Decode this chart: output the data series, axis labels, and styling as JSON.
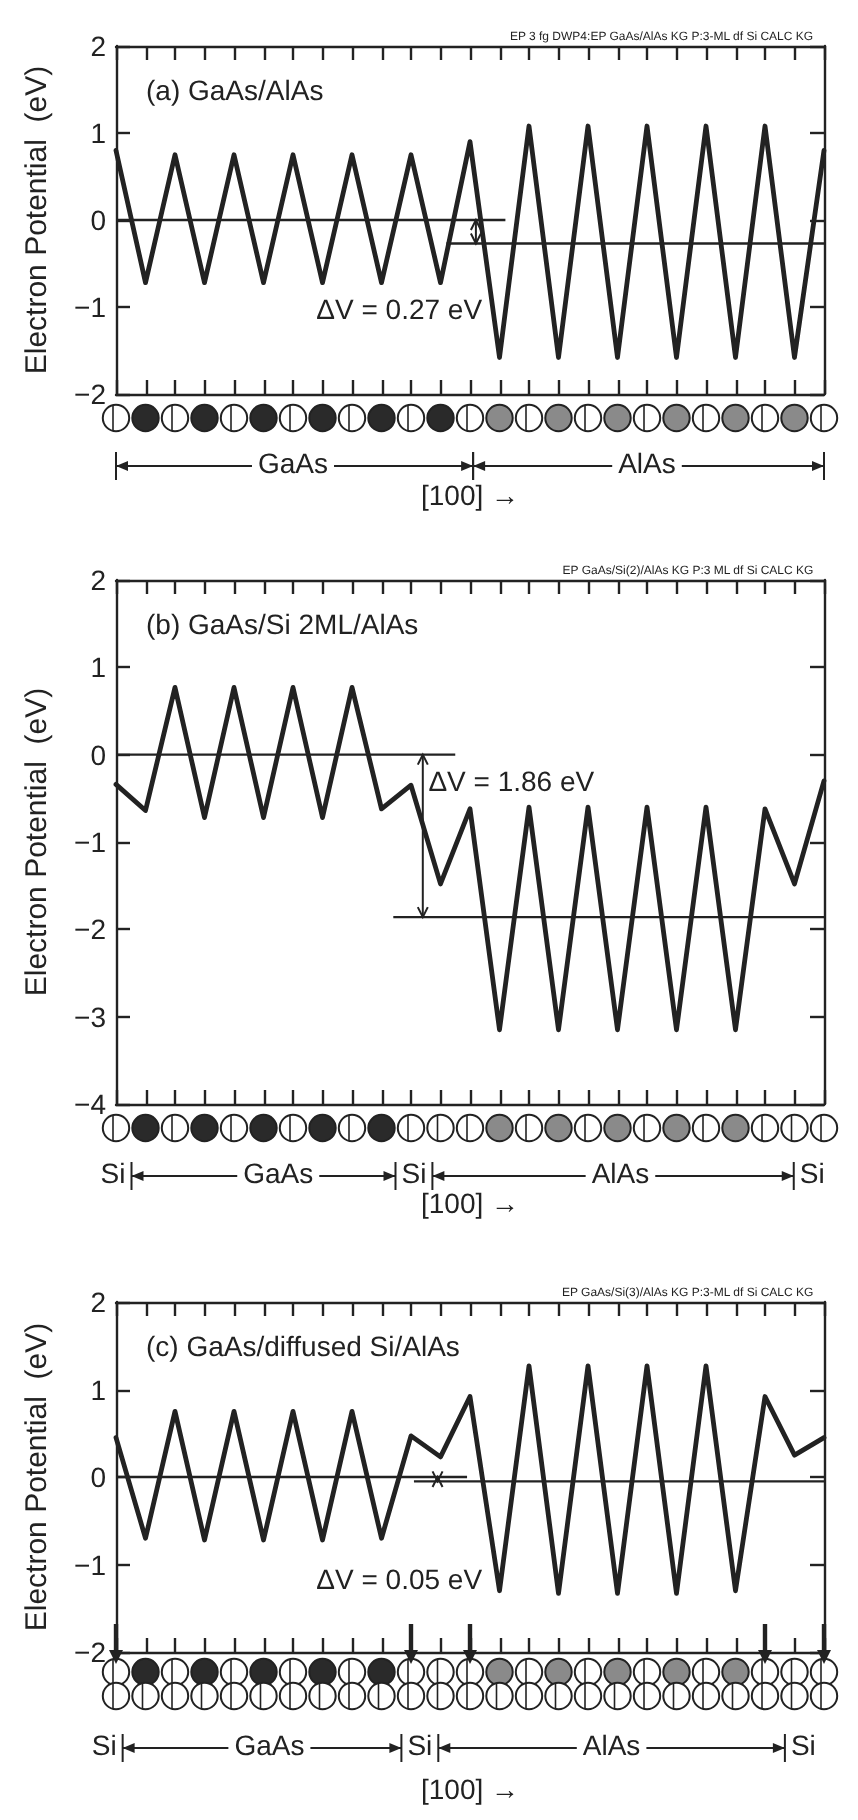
{
  "chart_data": [
    {
      "type": "line",
      "title": "(a) GaAs/AlAs",
      "subtitle": "EP 3 fg DWP4:EP GaAs/AlAs KG P:3-ML df Si CALC KG",
      "ylabel": "Electron Potential  (eV)",
      "categories": [
        null,
        null,
        null,
        null,
        null,
        null,
        null,
        null,
        null,
        null,
        null,
        null,
        null,
        null,
        null,
        null,
        null,
        null,
        null,
        null,
        null,
        null,
        null,
        null,
        null
      ],
      "series": [
        {
          "color": "#222222",
          "values": [
            0.8,
            -0.72,
            0.75,
            -0.72,
            0.75,
            -0.72,
            0.75,
            -0.72,
            0.75,
            -0.72,
            0.75,
            -0.72,
            0.9,
            -1.58,
            1.08,
            -1.58,
            1.08,
            -1.58,
            1.08,
            -1.58,
            1.08,
            -1.58,
            1.08,
            -1.58,
            0.8
          ]
        }
      ],
      "ref_lines": [
        {
          "axis": "y",
          "value": 0,
          "color": "#222222"
        },
        {
          "axis": "y",
          "value": -0.27,
          "color": "#222222"
        }
      ],
      "annotations": [
        "ΔV = 0.27 eV",
        "GaAs",
        "AlAs",
        "[100] →"
      ],
      "ylim": [
        -2,
        2
      ],
      "yticks": [
        -2,
        -1,
        0,
        1,
        2
      ],
      "tick_labels": "y",
      "marker": "none",
      "line_style": "solid"
    },
    {
      "type": "line",
      "title": "(b) GaAs/Si 2ML/AlAs",
      "subtitle": "EP GaAs/Si(2)/AlAs KG P:3 ML df Si CALC KG",
      "ylabel": "Electron Potential  (eV)",
      "categories": [
        null,
        null,
        null,
        null,
        null,
        null,
        null,
        null,
        null,
        null,
        null,
        null,
        null,
        null,
        null,
        null,
        null,
        null,
        null,
        null,
        null,
        null,
        null,
        null,
        null
      ],
      "series": [
        {
          "color": "#222222",
          "values": [
            -0.34,
            -0.64,
            0.77,
            -0.72,
            0.77,
            -0.72,
            0.77,
            -0.72,
            0.77,
            -0.62,
            -0.35,
            -1.48,
            -0.62,
            -3.15,
            -0.6,
            -3.15,
            -0.6,
            -3.15,
            -0.6,
            -3.15,
            -0.6,
            -3.15,
            -0.62,
            -1.48,
            -0.3
          ]
        }
      ],
      "ref_lines": [
        {
          "axis": "y",
          "value": 0,
          "color": "#222222"
        },
        {
          "axis": "y",
          "value": -1.86,
          "color": "#222222"
        }
      ],
      "annotations": [
        "ΔV = 1.86 eV",
        "Si",
        "GaAs",
        "Si",
        "AlAs",
        "Si",
        "[100] →"
      ],
      "ylim": [
        -4,
        2
      ],
      "yticks": [
        -4,
        -3,
        -2,
        -1,
        0,
        1,
        2
      ],
      "tick_labels": "y",
      "marker": "none",
      "line_style": "solid"
    },
    {
      "type": "line",
      "title": "(c) GaAs/diffused Si/AlAs",
      "subtitle": "EP GaAs/Si(3)/AlAs KG P:3-ML df Si CALC KG",
      "ylabel": "Electron Potential  (eV)",
      "categories": [
        null,
        null,
        null,
        null,
        null,
        null,
        null,
        null,
        null,
        null,
        null,
        null,
        null,
        null,
        null,
        null,
        null,
        null,
        null,
        null,
        null,
        null,
        null,
        null,
        null
      ],
      "series": [
        {
          "color": "#222222",
          "values": [
            0.45,
            -0.7,
            0.75,
            -0.72,
            0.75,
            -0.72,
            0.75,
            -0.72,
            0.75,
            -0.7,
            0.47,
            0.23,
            0.92,
            -1.3,
            1.27,
            -1.33,
            1.27,
            -1.33,
            1.27,
            -1.33,
            1.27,
            -1.3,
            0.92,
            0.25,
            0.45
          ]
        }
      ],
      "ref_lines": [
        {
          "axis": "y",
          "value": 0,
          "color": "#222222"
        },
        {
          "axis": "y",
          "value": -0.05,
          "color": "#222222"
        }
      ],
      "annotations": [
        "ΔV = 0.05 eV",
        "Si",
        "GaAs",
        "Si",
        "AlAs",
        "Si",
        "[100] →"
      ],
      "ylim": [
        -2,
        2
      ],
      "yticks": [
        -2,
        -1,
        0,
        1,
        2
      ],
      "tick_labels": "y",
      "marker": "none",
      "line_style": "solid"
    }
  ]
}
